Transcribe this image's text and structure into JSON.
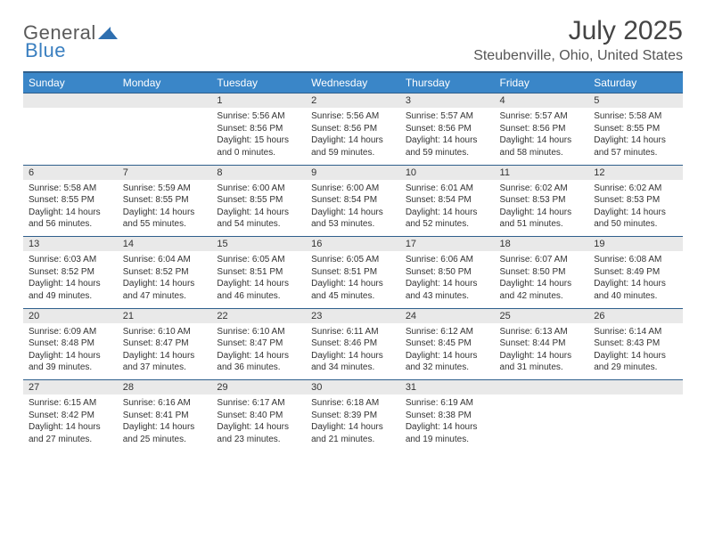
{
  "brand": {
    "part1": "General",
    "part2": "Blue"
  },
  "title": "July 2025",
  "location": "Steubenville, Ohio, United States",
  "colors": {
    "header_bg": "#3a86c8",
    "header_border": "#2f5f8c",
    "daynum_bg": "#e9e9e9",
    "text": "#333333",
    "brand_blue": "#3a7fc0"
  },
  "weekdays": [
    "Sunday",
    "Monday",
    "Tuesday",
    "Wednesday",
    "Thursday",
    "Friday",
    "Saturday"
  ],
  "weeks": [
    {
      "days": [
        {
          "n": "",
          "sr": "",
          "ss": "",
          "dl": ""
        },
        {
          "n": "",
          "sr": "",
          "ss": "",
          "dl": ""
        },
        {
          "n": "1",
          "sr": "Sunrise: 5:56 AM",
          "ss": "Sunset: 8:56 PM",
          "dl": "Daylight: 15 hours and 0 minutes."
        },
        {
          "n": "2",
          "sr": "Sunrise: 5:56 AM",
          "ss": "Sunset: 8:56 PM",
          "dl": "Daylight: 14 hours and 59 minutes."
        },
        {
          "n": "3",
          "sr": "Sunrise: 5:57 AM",
          "ss": "Sunset: 8:56 PM",
          "dl": "Daylight: 14 hours and 59 minutes."
        },
        {
          "n": "4",
          "sr": "Sunrise: 5:57 AM",
          "ss": "Sunset: 8:56 PM",
          "dl": "Daylight: 14 hours and 58 minutes."
        },
        {
          "n": "5",
          "sr": "Sunrise: 5:58 AM",
          "ss": "Sunset: 8:55 PM",
          "dl": "Daylight: 14 hours and 57 minutes."
        }
      ]
    },
    {
      "days": [
        {
          "n": "6",
          "sr": "Sunrise: 5:58 AM",
          "ss": "Sunset: 8:55 PM",
          "dl": "Daylight: 14 hours and 56 minutes."
        },
        {
          "n": "7",
          "sr": "Sunrise: 5:59 AM",
          "ss": "Sunset: 8:55 PM",
          "dl": "Daylight: 14 hours and 55 minutes."
        },
        {
          "n": "8",
          "sr": "Sunrise: 6:00 AM",
          "ss": "Sunset: 8:55 PM",
          "dl": "Daylight: 14 hours and 54 minutes."
        },
        {
          "n": "9",
          "sr": "Sunrise: 6:00 AM",
          "ss": "Sunset: 8:54 PM",
          "dl": "Daylight: 14 hours and 53 minutes."
        },
        {
          "n": "10",
          "sr": "Sunrise: 6:01 AM",
          "ss": "Sunset: 8:54 PM",
          "dl": "Daylight: 14 hours and 52 minutes."
        },
        {
          "n": "11",
          "sr": "Sunrise: 6:02 AM",
          "ss": "Sunset: 8:53 PM",
          "dl": "Daylight: 14 hours and 51 minutes."
        },
        {
          "n": "12",
          "sr": "Sunrise: 6:02 AM",
          "ss": "Sunset: 8:53 PM",
          "dl": "Daylight: 14 hours and 50 minutes."
        }
      ]
    },
    {
      "days": [
        {
          "n": "13",
          "sr": "Sunrise: 6:03 AM",
          "ss": "Sunset: 8:52 PM",
          "dl": "Daylight: 14 hours and 49 minutes."
        },
        {
          "n": "14",
          "sr": "Sunrise: 6:04 AM",
          "ss": "Sunset: 8:52 PM",
          "dl": "Daylight: 14 hours and 47 minutes."
        },
        {
          "n": "15",
          "sr": "Sunrise: 6:05 AM",
          "ss": "Sunset: 8:51 PM",
          "dl": "Daylight: 14 hours and 46 minutes."
        },
        {
          "n": "16",
          "sr": "Sunrise: 6:05 AM",
          "ss": "Sunset: 8:51 PM",
          "dl": "Daylight: 14 hours and 45 minutes."
        },
        {
          "n": "17",
          "sr": "Sunrise: 6:06 AM",
          "ss": "Sunset: 8:50 PM",
          "dl": "Daylight: 14 hours and 43 minutes."
        },
        {
          "n": "18",
          "sr": "Sunrise: 6:07 AM",
          "ss": "Sunset: 8:50 PM",
          "dl": "Daylight: 14 hours and 42 minutes."
        },
        {
          "n": "19",
          "sr": "Sunrise: 6:08 AM",
          "ss": "Sunset: 8:49 PM",
          "dl": "Daylight: 14 hours and 40 minutes."
        }
      ]
    },
    {
      "days": [
        {
          "n": "20",
          "sr": "Sunrise: 6:09 AM",
          "ss": "Sunset: 8:48 PM",
          "dl": "Daylight: 14 hours and 39 minutes."
        },
        {
          "n": "21",
          "sr": "Sunrise: 6:10 AM",
          "ss": "Sunset: 8:47 PM",
          "dl": "Daylight: 14 hours and 37 minutes."
        },
        {
          "n": "22",
          "sr": "Sunrise: 6:10 AM",
          "ss": "Sunset: 8:47 PM",
          "dl": "Daylight: 14 hours and 36 minutes."
        },
        {
          "n": "23",
          "sr": "Sunrise: 6:11 AM",
          "ss": "Sunset: 8:46 PM",
          "dl": "Daylight: 14 hours and 34 minutes."
        },
        {
          "n": "24",
          "sr": "Sunrise: 6:12 AM",
          "ss": "Sunset: 8:45 PM",
          "dl": "Daylight: 14 hours and 32 minutes."
        },
        {
          "n": "25",
          "sr": "Sunrise: 6:13 AM",
          "ss": "Sunset: 8:44 PM",
          "dl": "Daylight: 14 hours and 31 minutes."
        },
        {
          "n": "26",
          "sr": "Sunrise: 6:14 AM",
          "ss": "Sunset: 8:43 PM",
          "dl": "Daylight: 14 hours and 29 minutes."
        }
      ]
    },
    {
      "days": [
        {
          "n": "27",
          "sr": "Sunrise: 6:15 AM",
          "ss": "Sunset: 8:42 PM",
          "dl": "Daylight: 14 hours and 27 minutes."
        },
        {
          "n": "28",
          "sr": "Sunrise: 6:16 AM",
          "ss": "Sunset: 8:41 PM",
          "dl": "Daylight: 14 hours and 25 minutes."
        },
        {
          "n": "29",
          "sr": "Sunrise: 6:17 AM",
          "ss": "Sunset: 8:40 PM",
          "dl": "Daylight: 14 hours and 23 minutes."
        },
        {
          "n": "30",
          "sr": "Sunrise: 6:18 AM",
          "ss": "Sunset: 8:39 PM",
          "dl": "Daylight: 14 hours and 21 minutes."
        },
        {
          "n": "31",
          "sr": "Sunrise: 6:19 AM",
          "ss": "Sunset: 8:38 PM",
          "dl": "Daylight: 14 hours and 19 minutes."
        },
        {
          "n": "",
          "sr": "",
          "ss": "",
          "dl": ""
        },
        {
          "n": "",
          "sr": "",
          "ss": "",
          "dl": ""
        }
      ]
    }
  ]
}
